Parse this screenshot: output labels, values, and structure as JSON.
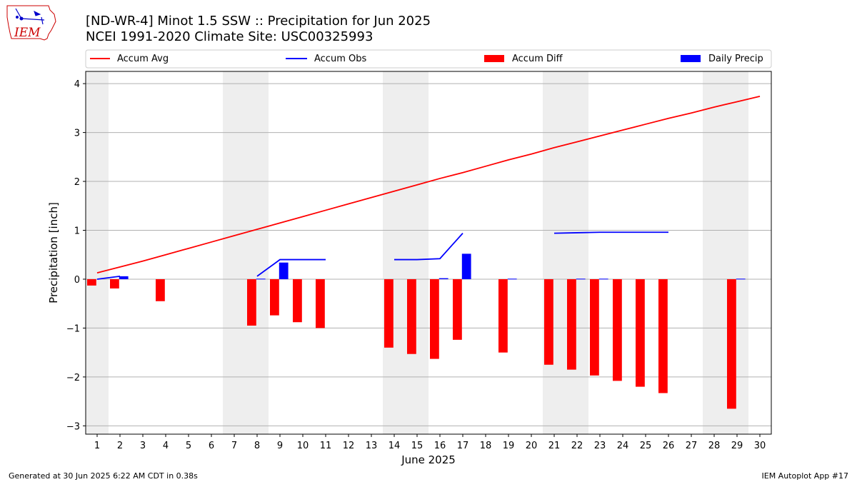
{
  "logo": {
    "text": "IEM"
  },
  "header": {
    "title": "[ND-WR-4] Minot 1.5 SSW :: Precipitation for Jun 2025",
    "subtitle": "NCEI 1991-2020 Climate Site: USC00325993"
  },
  "footer": {
    "left": "Generated at 30 Jun 2025 6:22 AM CDT in 0.38s",
    "right": "IEM Autoplot App #17"
  },
  "colors": {
    "avg": "#ff0000",
    "obs": "#0000ff",
    "diff": "#ff0000",
    "daily": "#0000ff",
    "weekend_band": "#eeeeee",
    "grid": "#b0b0b0"
  },
  "chart_data": {
    "type": "bar",
    "xlabel": "June 2025",
    "ylabel": "Precipitation [inch]",
    "xlim": [
      0.5,
      30.5
    ],
    "ylim": [
      -3.17,
      4.25
    ],
    "grid": true,
    "legend_position": "top",
    "x": [
      1,
      2,
      3,
      4,
      5,
      6,
      7,
      8,
      9,
      10,
      11,
      12,
      13,
      14,
      15,
      16,
      17,
      18,
      19,
      20,
      21,
      22,
      23,
      24,
      25,
      26,
      27,
      28,
      29,
      30
    ],
    "x_ticks": [
      "1",
      "2",
      "3",
      "4",
      "5",
      "6",
      "7",
      "8",
      "9",
      "10",
      "11",
      "12",
      "13",
      "14",
      "15",
      "16",
      "17",
      "18",
      "19",
      "20",
      "21",
      "22",
      "23",
      "24",
      "25",
      "26",
      "27",
      "28",
      "29",
      "30"
    ],
    "y_ticks": [
      "4",
      "3",
      "2",
      "1",
      "0",
      "−1",
      "−2",
      "−3"
    ],
    "y_tick_values": [
      4,
      3,
      2,
      1,
      0,
      -1,
      -2,
      -3
    ],
    "weekend_days": [
      1,
      7,
      8,
      14,
      15,
      21,
      22,
      28,
      29
    ],
    "series": [
      {
        "name": "Accum Avg",
        "type": "line",
        "values": [
          0.13,
          0.25,
          0.37,
          0.5,
          0.63,
          0.76,
          0.89,
          1.02,
          1.15,
          1.28,
          1.41,
          1.54,
          1.67,
          1.8,
          1.93,
          2.06,
          2.18,
          2.31,
          2.44,
          2.56,
          2.69,
          2.81,
          2.93,
          3.05,
          3.17,
          3.29,
          3.4,
          3.52,
          3.63,
          3.74
        ]
      },
      {
        "name": "Accum Obs",
        "type": "line",
        "values": [
          0.0,
          0.06,
          null,
          null,
          null,
          null,
          null,
          0.06,
          0.4,
          0.4,
          0.4,
          null,
          null,
          0.4,
          0.4,
          0.42,
          0.94,
          null,
          null,
          null,
          0.94,
          0.95,
          0.96,
          0.96,
          0.96,
          0.96,
          null,
          null,
          null,
          null
        ]
      },
      {
        "name": "Accum Diff",
        "type": "bar",
        "values": [
          -0.13,
          -0.19,
          null,
          -0.45,
          null,
          null,
          null,
          -0.95,
          -0.74,
          -0.88,
          -1.0,
          null,
          null,
          -1.4,
          -1.53,
          -1.63,
          -1.24,
          null,
          -1.5,
          null,
          -1.75,
          -1.85,
          -1.97,
          -2.08,
          -2.2,
          -2.33,
          null,
          null,
          -2.65,
          null
        ]
      },
      {
        "name": "Daily Precip",
        "type": "bar",
        "values": [
          null,
          0.06,
          null,
          null,
          null,
          null,
          null,
          0.01,
          0.34,
          null,
          null,
          null,
          null,
          null,
          null,
          0.02,
          0.52,
          null,
          0.01,
          null,
          null,
          0.01,
          0.01,
          null,
          null,
          null,
          null,
          null,
          0.01,
          null
        ]
      }
    ]
  }
}
